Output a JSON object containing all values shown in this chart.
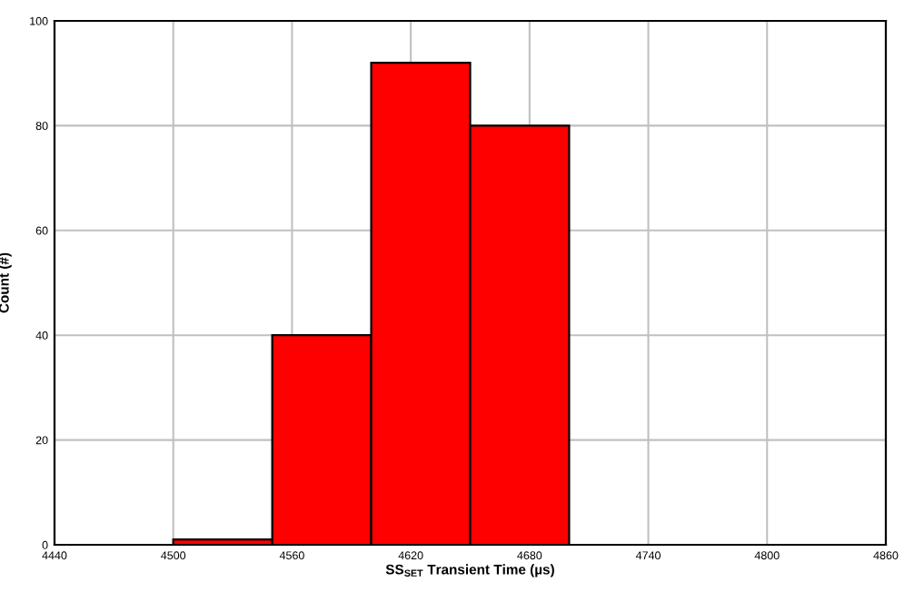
{
  "chart_data": {
    "type": "histogram",
    "xlabel": "SS$_{SET}$ Transient Time (µs)",
    "ylabel": "Count (#)",
    "bins": [
      4500,
      4550,
      4600,
      4650,
      4700
    ],
    "values": [
      1,
      40,
      92,
      80
    ],
    "color": "#ff0000",
    "xlim": [
      4440,
      4860
    ],
    "xticks": [
      4440,
      4500,
      4560,
      4620,
      4680,
      4740,
      4800,
      4860
    ],
    "ylim": [
      0,
      100
    ],
    "yticks": [
      0,
      20,
      40,
      60,
      80,
      100
    ],
    "grid": true
  }
}
